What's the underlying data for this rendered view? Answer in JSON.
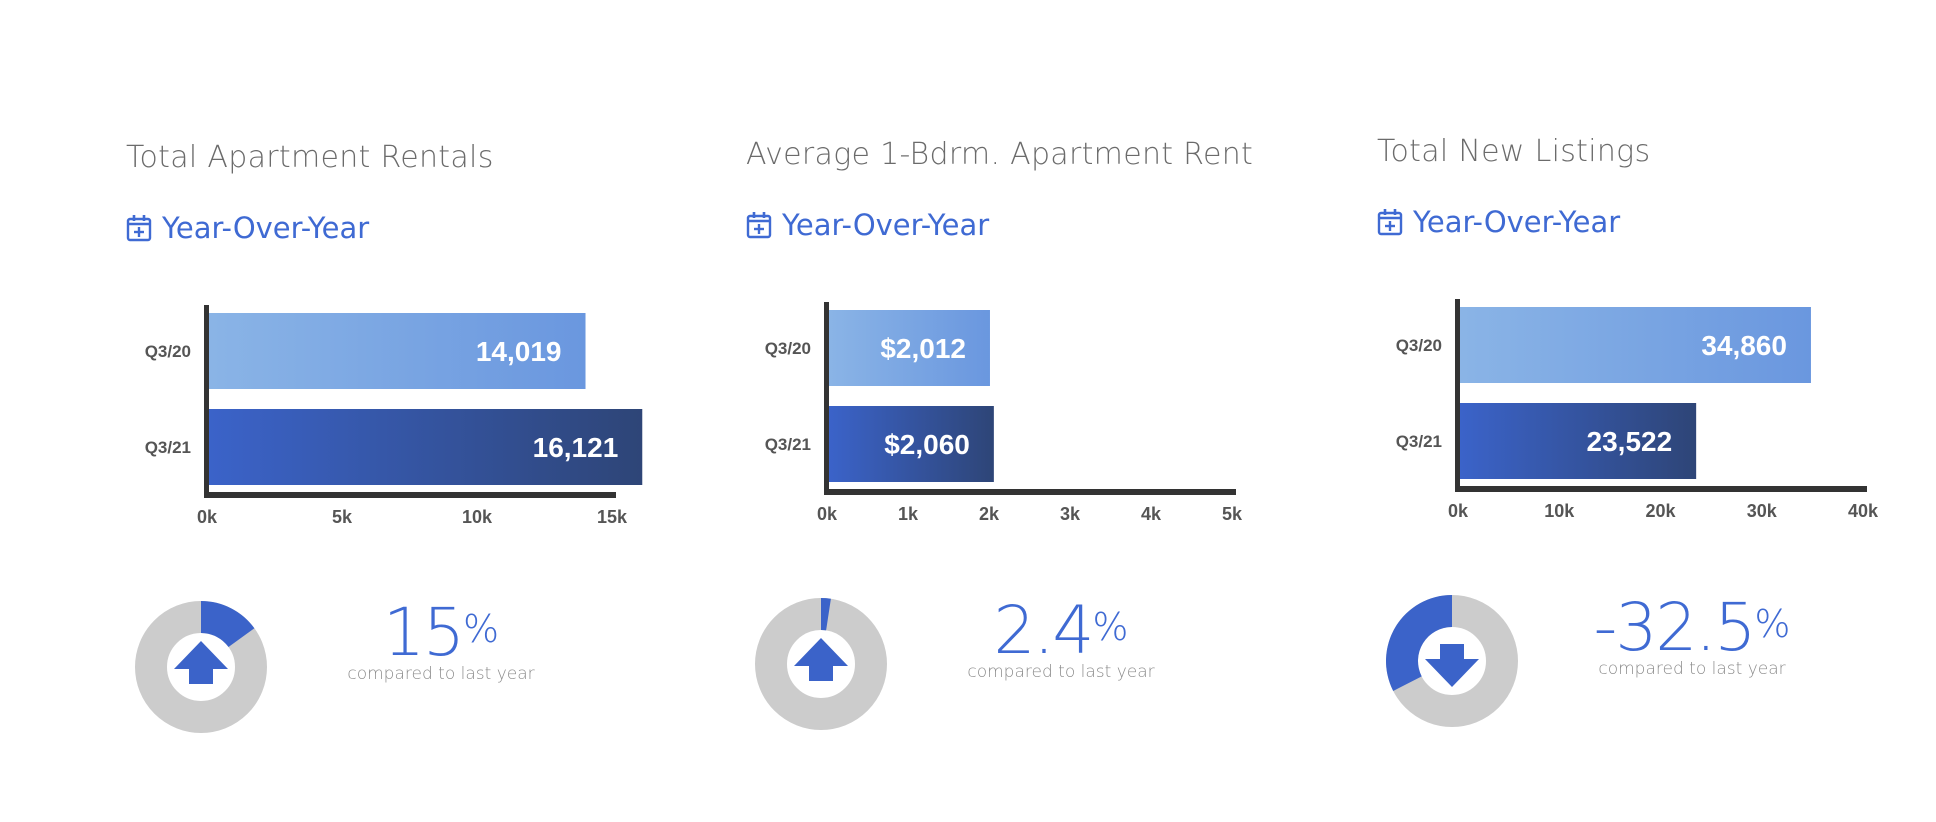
{
  "colors": {
    "accent": "#3f6ad3",
    "bar_light_start": "#8ab4e6",
    "bar_light_end": "#6a97df",
    "bar_dark_start": "#3b63c9",
    "bar_dark_end": "#2e4577",
    "donut_track": "#cccccc",
    "axis": "#333333"
  },
  "panels": [
    {
      "title": "Total Apartment Rentals",
      "period_label": "Year-Over-Year",
      "period_icon": "calendar-plus-icon",
      "kpi": {
        "value": "15",
        "unit": "%",
        "caption": "compared to last year",
        "direction": "up",
        "donut_fraction": 0.15
      }
    },
    {
      "title": "Average 1-Bdrm. Apartment Rent",
      "period_label": "Year-Over-Year",
      "period_icon": "calendar-plus-icon",
      "kpi": {
        "value": "2.4",
        "unit": "%",
        "caption": "compared to last year",
        "direction": "up",
        "donut_fraction": 0.024
      }
    },
    {
      "title": "Total New Listings",
      "period_label": "Year-Over-Year",
      "period_icon": "calendar-plus-icon",
      "kpi": {
        "value": "-32.5",
        "unit": "%",
        "caption": "compared to last year",
        "direction": "down",
        "donut_fraction": 0.325
      }
    }
  ],
  "chart_data": [
    {
      "type": "bar",
      "orientation": "horizontal",
      "categories": [
        "Q3/20",
        "Q3/21"
      ],
      "values": [
        14019,
        16121
      ],
      "data_labels": [
        "14,019",
        "16,121"
      ],
      "xlim": [
        0,
        15000
      ],
      "x_ticks": [
        0,
        5000,
        10000,
        15000
      ],
      "x_tick_labels": [
        "0k",
        "5k",
        "10k",
        "15k"
      ]
    },
    {
      "type": "bar",
      "orientation": "horizontal",
      "categories": [
        "Q3/20",
        "Q3/21"
      ],
      "values": [
        2012,
        2060
      ],
      "data_labels": [
        "$2,012",
        "$2,060"
      ],
      "xlim": [
        0,
        5000
      ],
      "x_ticks": [
        0,
        1000,
        2000,
        3000,
        4000,
        5000
      ],
      "x_tick_labels": [
        "0k",
        "1k",
        "2k",
        "3k",
        "4k",
        "5k"
      ]
    },
    {
      "type": "bar",
      "orientation": "horizontal",
      "categories": [
        "Q3/20",
        "Q3/21"
      ],
      "values": [
        34860,
        23522
      ],
      "data_labels": [
        "34,860",
        "23,522"
      ],
      "xlim": [
        0,
        40000
      ],
      "x_ticks": [
        0,
        10000,
        20000,
        30000,
        40000
      ],
      "x_tick_labels": [
        "0k",
        "10k",
        "20k",
        "30k",
        "40k"
      ]
    }
  ]
}
